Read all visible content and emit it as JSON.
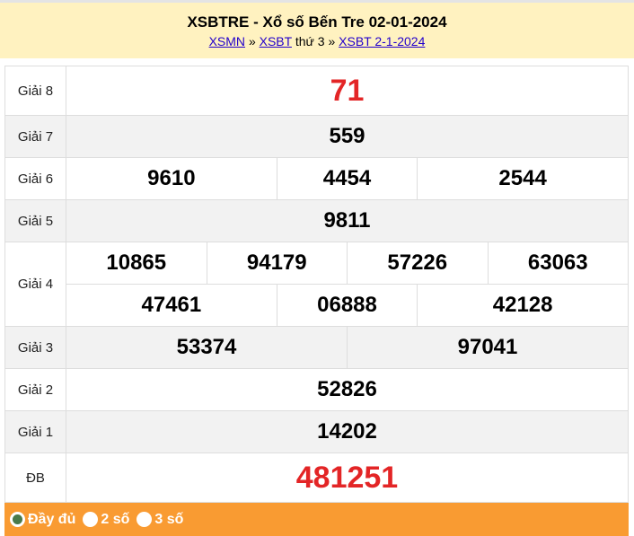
{
  "header": {
    "title": "XSBTRE - Xổ số Bến Tre 02-01-2024",
    "crumb1": "XSMN",
    "sep1": "»",
    "crumb2": "XSBT",
    "day": "thứ 3",
    "sep2": "»",
    "crumb3": "XSBT 2-1-2024"
  },
  "prizes": {
    "g8": {
      "label": "Giải 8",
      "values": [
        "71"
      ]
    },
    "g7": {
      "label": "Giải 7",
      "values": [
        "559"
      ]
    },
    "g6": {
      "label": "Giải 6",
      "values": [
        "9610",
        "4454",
        "2544"
      ]
    },
    "g5": {
      "label": "Giải 5",
      "values": [
        "9811"
      ]
    },
    "g4": {
      "label": "Giải 4",
      "values": [
        "10865",
        "94179",
        "57226",
        "63063",
        "47461",
        "06888",
        "42128"
      ]
    },
    "g3": {
      "label": "Giải 3",
      "values": [
        "53374",
        "97041"
      ]
    },
    "g2": {
      "label": "Giải 2",
      "values": [
        "52826"
      ]
    },
    "g1": {
      "label": "Giải 1",
      "values": [
        "14202"
      ]
    },
    "db": {
      "label": "ĐB",
      "values": [
        "481251"
      ]
    }
  },
  "footer": {
    "options": [
      {
        "label": "Đầy đủ",
        "selected": true
      },
      {
        "label": "2 số",
        "selected": false
      },
      {
        "label": "3 số",
        "selected": false
      }
    ]
  },
  "colors": {
    "header_bg": "#fff2c0",
    "footer_bg": "#f99b32",
    "highlight": "#e32526"
  }
}
